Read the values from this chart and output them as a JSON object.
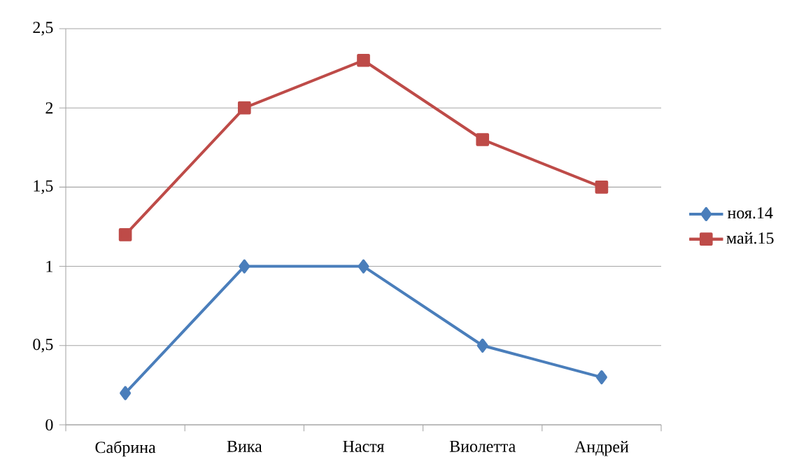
{
  "chart_data": {
    "type": "line",
    "categories": [
      "Сабрина",
      "Вика",
      "Настя",
      "Виолетта",
      "Андрей"
    ],
    "series": [
      {
        "name": "ноя.14",
        "color": "#4a7ebb",
        "marker": "diamond",
        "values": [
          0.2,
          1,
          1,
          0.5,
          0.3
        ]
      },
      {
        "name": "май.15",
        "color": "#be4b48",
        "marker": "square",
        "values": [
          1.2,
          2,
          2.3,
          1.8,
          1.5
        ]
      }
    ],
    "ylim": [
      0,
      2.5
    ],
    "yticks": [
      0,
      {
        "value": 0.5,
        "label": "0,5"
      },
      1,
      {
        "value": 1.5,
        "label": "1,5"
      },
      2,
      {
        "value": 2.5,
        "label": "2,5"
      }
    ],
    "grid": "y",
    "legend": "right",
    "line_style": "solid"
  }
}
